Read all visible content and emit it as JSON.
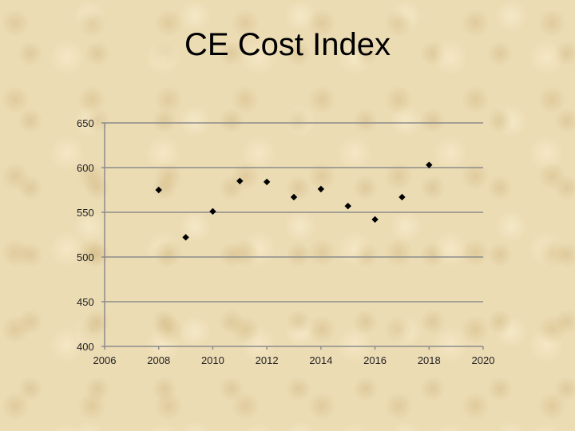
{
  "slide": {
    "title": "CE Cost Index"
  },
  "chart_data": {
    "type": "scatter",
    "title": "CE Cost Index",
    "xlabel": "",
    "ylabel": "",
    "xlim": [
      2006,
      2020
    ],
    "ylim": [
      400,
      650
    ],
    "x_ticks": [
      2006,
      2008,
      2010,
      2012,
      2014,
      2016,
      2018,
      2020
    ],
    "y_ticks": [
      400,
      450,
      500,
      550,
      600,
      650
    ],
    "grid": "horizontal",
    "legend": "none",
    "marker": "diamond",
    "marker_color": "#000000",
    "gridline_color": "#8c8c8c",
    "series": [
      {
        "x": [
          2008,
          2009,
          2010,
          2011,
          2012,
          2013,
          2014,
          2015,
          2016,
          2017,
          2018
        ],
        "y": [
          575,
          522,
          551,
          585,
          584,
          567,
          576,
          557,
          542,
          567,
          603
        ]
      }
    ]
  }
}
